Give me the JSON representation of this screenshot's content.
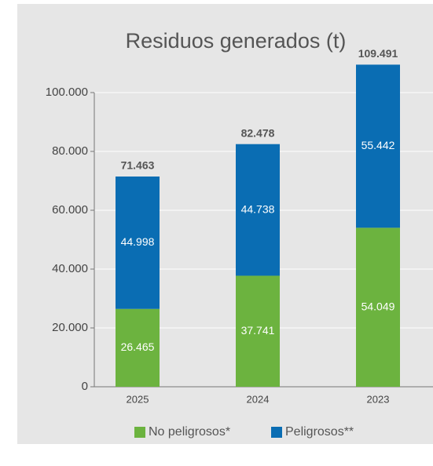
{
  "chart_data": {
    "type": "stacked_bar",
    "title": "Residuos generados (t)",
    "categories": [
      "2025",
      "2024",
      "2023"
    ],
    "series": [
      {
        "name": "No peligrosos*",
        "color": "#6cb33f",
        "values": [
          26465,
          37741,
          54049
        ],
        "value_labels": [
          "26.465",
          "37.741",
          "54.049"
        ]
      },
      {
        "name": "Peligrosos**",
        "color": "#0a6db3",
        "values": [
          44998,
          44738,
          55442
        ],
        "value_labels": [
          "44.998",
          "44.738",
          "55.442"
        ]
      }
    ],
    "totals": {
      "values": [
        71463,
        82478,
        109491
      ],
      "value_labels": [
        "71.463",
        "82.478",
        "109.491"
      ]
    },
    "ylim": [
      0,
      110000
    ],
    "yticks": [
      0,
      {
        "value": 20000,
        "label": "20.000"
      },
      {
        "value": 40000,
        "label": "40.000"
      },
      {
        "value": 60000,
        "label": "60.000"
      },
      {
        "value": 80000,
        "label": "80.000"
      },
      {
        "value": 100000,
        "label": "100.000"
      }
    ],
    "grid": true,
    "legend": "bottom"
  }
}
